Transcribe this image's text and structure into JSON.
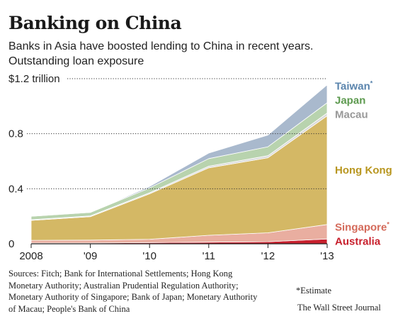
{
  "title": "Banking on China",
  "subtitle": "Banks in Asia have boosted lending to China in recent years.",
  "measure": "Outstanding loan exposure",
  "sources": "Sources: Fitch; Bank for International Settlements; Hong Kong Monetary Authority; Australian Prudential Regulation Authority; Monetary Authority of Singapore; Bank of Japan; Monetary Authority of Macau; People's Bank of China",
  "footnote": "*Estimate",
  "credit": "The Wall Street Journal",
  "chart_data": {
    "type": "area",
    "stacked": true,
    "x": [
      "2008",
      "'09",
      "'10",
      "'11",
      "'12",
      "'13"
    ],
    "xticks": [
      "2008",
      "'09",
      "'10",
      "'11",
      "'12",
      "'13"
    ],
    "yticks": [
      "0",
      "0.4",
      "0.8",
      "$1.2 trillion"
    ],
    "ytick_values": [
      0,
      0.4,
      0.8,
      1.2
    ],
    "ylim": [
      0,
      1.2
    ],
    "grid": "dotted horizontal",
    "series": [
      {
        "name": "Australia",
        "label": "Australia",
        "values": [
          0.005,
          0.005,
          0.008,
          0.012,
          0.015,
          0.035
        ],
        "color": "#c8202d",
        "label_color": "#c8202d"
      },
      {
        "name": "Singapore",
        "label": "Singapore*",
        "values": [
          0.02,
          0.022,
          0.025,
          0.05,
          0.065,
          0.105
        ],
        "color": "#e9aea0",
        "label_color": "#d46a5a"
      },
      {
        "name": "Hong Kong",
        "label": "Hong Kong",
        "values": [
          0.145,
          0.17,
          0.33,
          0.49,
          0.545,
          0.79
        ],
        "color": "#d4b865",
        "label_color": "#b8961f"
      },
      {
        "name": "Macau",
        "label": "Macau",
        "values": [
          0.005,
          0.006,
          0.008,
          0.012,
          0.015,
          0.02
        ],
        "color": "#d9d9d9",
        "label_color": "#999999"
      },
      {
        "name": "Japan",
        "label": "Japan",
        "values": [
          0.025,
          0.025,
          0.035,
          0.055,
          0.065,
          0.075
        ],
        "color": "#b8d3ae",
        "label_color": "#5d9a4f"
      },
      {
        "name": "Taiwan",
        "label": "Taiwan*",
        "values": [
          0.0,
          0.0,
          0.01,
          0.04,
          0.085,
          0.13
        ],
        "color": "#a9b9cd",
        "label_color": "#5a84ad"
      }
    ]
  }
}
